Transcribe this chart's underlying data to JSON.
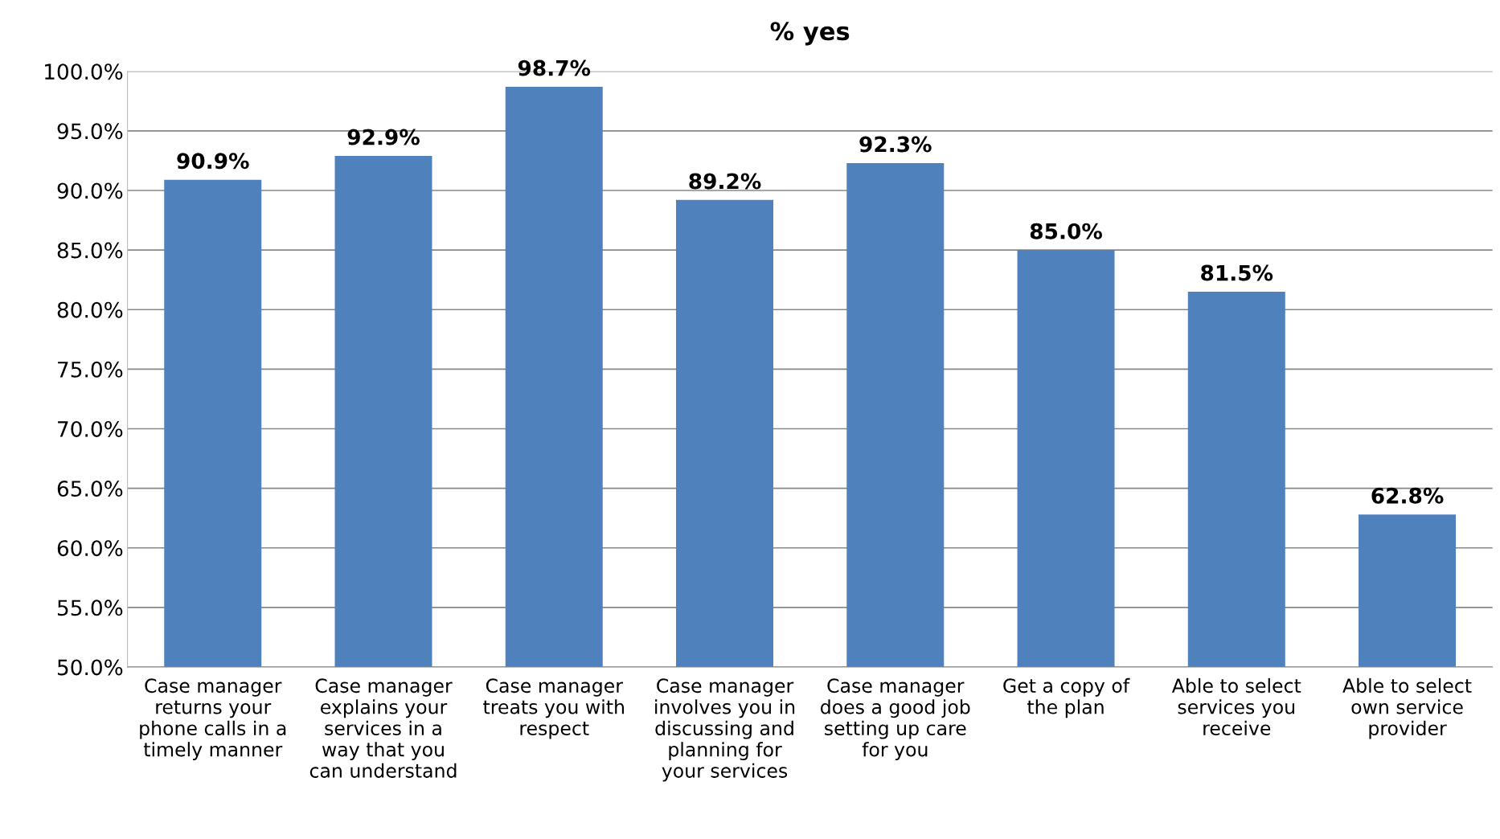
{
  "chart_data": {
    "type": "bar",
    "title": "% yes",
    "categories": [
      "Case manager\nreturns your\nphone calls in a\ntimely manner",
      "Case manager\nexplains your\nservices in a\nway that you\ncan understand",
      "Case manager\ntreats you with\nrespect",
      "Case manager\ninvolves you in\ndiscussing and\nplanning for\nyour services",
      "Case manager\ndoes a good job\nsetting up care\nfor you",
      "Get a copy of\nthe plan",
      "Able to select\nservices you\nreceive",
      "Able to select\nown service\nprovider"
    ],
    "values": [
      90.9,
      92.9,
      98.7,
      89.2,
      92.3,
      85.0,
      81.5,
      62.8
    ],
    "value_labels": [
      "90.9%",
      "92.9%",
      "98.7%",
      "89.2%",
      "92.3%",
      "85.0%",
      "81.5%",
      "62.8%"
    ],
    "color": "#4f81bd",
    "ylim": [
      50,
      100
    ],
    "yticks": [
      {
        "value": 50,
        "label": "50.0%"
      },
      {
        "value": 55,
        "label": "55.0%"
      },
      {
        "value": 60,
        "label": "60.0%"
      },
      {
        "value": 65,
        "label": "65.0%"
      },
      {
        "value": 70,
        "label": "70.0%"
      },
      {
        "value": 75,
        "label": "75.0%"
      },
      {
        "value": 80,
        "label": "80.0%"
      },
      {
        "value": 85,
        "label": "85.0%"
      },
      {
        "value": 90,
        "label": "90.0%"
      },
      {
        "value": 95,
        "label": "95.0%"
      },
      {
        "value": 100,
        "label": "100.0%"
      }
    ],
    "grid": "y"
  }
}
